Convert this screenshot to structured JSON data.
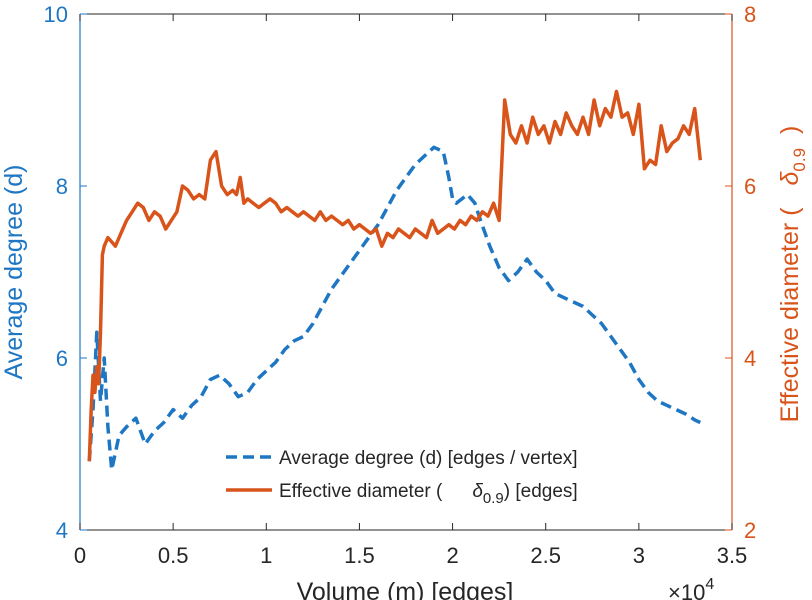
{
  "chart_data": {
    "type": "line",
    "xlabel": "Volume (m) [edges]",
    "x_exponent_base": "×10",
    "x_exponent_power": "4",
    "xlim": [
      0,
      3.5
    ],
    "xticks": [
      "0",
      "0.5",
      "1",
      "1.5",
      "2",
      "2.5",
      "3",
      "3.5"
    ],
    "left_axis": {
      "label": "Average degree (d)",
      "ylim": [
        4,
        10
      ],
      "ticks": [
        "4",
        "6",
        "8",
        "10"
      ],
      "color": "#1f77c4"
    },
    "right_axis": {
      "label_pre": "Effective diameter (",
      "label_delta": "δ",
      "label_sub": "0.9",
      "label_post": ")",
      "ylim": [
        2,
        8
      ],
      "ticks": [
        "2",
        "4",
        "6",
        "8"
      ],
      "color": "#d9541a"
    },
    "series": [
      {
        "name": "Average degree (d)",
        "legend_text": "Average degree (d) [edges / vertex]",
        "axis": "left",
        "style": "dashed",
        "color": "#1f77c4",
        "x": [
          0.05,
          0.07,
          0.09,
          0.11,
          0.13,
          0.15,
          0.17,
          0.19,
          0.21,
          0.25,
          0.3,
          0.35,
          0.4,
          0.45,
          0.5,
          0.55,
          0.6,
          0.65,
          0.7,
          0.75,
          0.8,
          0.85,
          0.9,
          0.95,
          1.0,
          1.05,
          1.1,
          1.15,
          1.2,
          1.25,
          1.3,
          1.35,
          1.4,
          1.45,
          1.5,
          1.55,
          1.6,
          1.65,
          1.7,
          1.75,
          1.8,
          1.85,
          1.9,
          1.95,
          1.98,
          2.0,
          2.02,
          2.05,
          2.08,
          2.12,
          2.15,
          2.2,
          2.25,
          2.3,
          2.35,
          2.4,
          2.45,
          2.5,
          2.55,
          2.6,
          2.65,
          2.7,
          2.75,
          2.8,
          2.85,
          2.9,
          2.95,
          3.0,
          3.05,
          3.1,
          3.15,
          3.2,
          3.25,
          3.3,
          3.33
        ],
        "y": [
          4.8,
          5.4,
          6.3,
          5.5,
          6.0,
          5.2,
          4.7,
          4.9,
          5.1,
          5.2,
          5.3,
          5.0,
          5.15,
          5.25,
          5.4,
          5.3,
          5.45,
          5.55,
          5.75,
          5.8,
          5.7,
          5.55,
          5.6,
          5.75,
          5.85,
          5.95,
          6.1,
          6.2,
          6.25,
          6.4,
          6.6,
          6.8,
          6.95,
          7.1,
          7.25,
          7.4,
          7.55,
          7.75,
          7.95,
          8.1,
          8.25,
          8.35,
          8.45,
          8.4,
          8.1,
          7.85,
          7.8,
          7.85,
          7.9,
          7.8,
          7.6,
          7.3,
          7.05,
          6.9,
          7.0,
          7.15,
          7.0,
          6.9,
          6.75,
          6.7,
          6.65,
          6.6,
          6.5,
          6.4,
          6.25,
          6.1,
          5.95,
          5.75,
          5.6,
          5.5,
          5.45,
          5.4,
          5.35,
          5.28,
          5.25
        ]
      },
      {
        "name": "Effective diameter",
        "legend_pre": "Effective diameter (",
        "legend_delta": "δ",
        "legend_sub": "0.9",
        "legend_post": ") [edges]",
        "axis": "right",
        "style": "solid",
        "color": "#d9541a",
        "x": [
          0.05,
          0.06,
          0.07,
          0.08,
          0.09,
          0.1,
          0.11,
          0.12,
          0.13,
          0.15,
          0.17,
          0.19,
          0.21,
          0.23,
          0.25,
          0.28,
          0.31,
          0.34,
          0.37,
          0.4,
          0.43,
          0.46,
          0.49,
          0.52,
          0.55,
          0.58,
          0.61,
          0.64,
          0.67,
          0.7,
          0.73,
          0.76,
          0.79,
          0.82,
          0.84,
          0.86,
          0.88,
          0.9,
          0.93,
          0.96,
          0.99,
          1.02,
          1.05,
          1.08,
          1.11,
          1.14,
          1.17,
          1.2,
          1.23,
          1.26,
          1.29,
          1.32,
          1.35,
          1.38,
          1.41,
          1.44,
          1.47,
          1.5,
          1.53,
          1.56,
          1.59,
          1.62,
          1.65,
          1.68,
          1.71,
          1.74,
          1.77,
          1.8,
          1.83,
          1.86,
          1.89,
          1.92,
          1.95,
          1.98,
          2.01,
          2.04,
          2.07,
          2.1,
          2.13,
          2.16,
          2.19,
          2.22,
          2.25,
          2.28,
          2.31,
          2.34,
          2.37,
          2.4,
          2.43,
          2.46,
          2.49,
          2.52,
          2.55,
          2.58,
          2.61,
          2.64,
          2.67,
          2.7,
          2.73,
          2.76,
          2.79,
          2.82,
          2.85,
          2.88,
          2.91,
          2.94,
          2.97,
          3.0,
          3.03,
          3.06,
          3.09,
          3.12,
          3.15,
          3.18,
          3.21,
          3.24,
          3.27,
          3.3,
          3.33
        ],
        "y": [
          2.8,
          3.4,
          3.8,
          3.6,
          3.9,
          3.7,
          4.3,
          5.2,
          5.3,
          5.4,
          5.35,
          5.3,
          5.4,
          5.5,
          5.6,
          5.7,
          5.8,
          5.75,
          5.6,
          5.7,
          5.65,
          5.5,
          5.6,
          5.7,
          6.0,
          5.95,
          5.85,
          5.9,
          5.85,
          6.3,
          6.4,
          6.0,
          5.9,
          5.95,
          5.9,
          6.1,
          5.8,
          5.85,
          5.8,
          5.75,
          5.8,
          5.85,
          5.8,
          5.7,
          5.75,
          5.7,
          5.65,
          5.7,
          5.65,
          5.6,
          5.7,
          5.6,
          5.65,
          5.6,
          5.55,
          5.6,
          5.5,
          5.55,
          5.5,
          5.45,
          5.5,
          5.3,
          5.45,
          5.4,
          5.5,
          5.45,
          5.4,
          5.5,
          5.45,
          5.4,
          5.6,
          5.45,
          5.5,
          5.55,
          5.5,
          5.6,
          5.55,
          5.65,
          5.6,
          5.7,
          5.65,
          5.8,
          5.6,
          7.0,
          6.6,
          6.5,
          6.7,
          6.5,
          6.8,
          6.6,
          6.7,
          6.5,
          6.75,
          6.6,
          6.85,
          6.7,
          6.6,
          6.8,
          6.6,
          7.0,
          6.7,
          6.9,
          6.8,
          7.1,
          6.8,
          6.85,
          6.6,
          6.95,
          6.2,
          6.3,
          6.25,
          6.7,
          6.4,
          6.5,
          6.55,
          6.7,
          6.6,
          6.9,
          6.3
        ]
      }
    ]
  }
}
